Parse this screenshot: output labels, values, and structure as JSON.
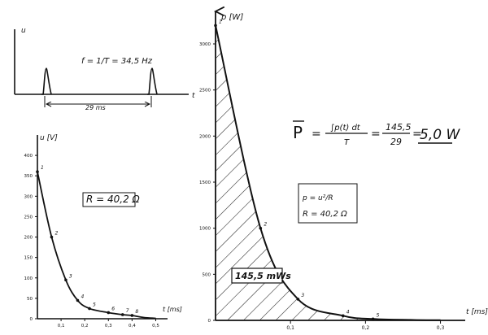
{
  "charts": {
    "pulse": {
      "ylabel": "u",
      "xlabel": "t",
      "formula": "f = 1/T = 34,5 Hz",
      "period_label": "29 ms"
    },
    "voltage": {
      "type": "line",
      "ylabel": "u [V]",
      "xlabel": "t [ms]",
      "annotation": "R = 40,2 Ω",
      "y_ticks": [
        "0",
        "50",
        "100",
        "150",
        "200",
        "250",
        "300",
        "350",
        "400"
      ],
      "x_ticks": [
        "0,1",
        "0,2",
        "0,3",
        "0,4",
        "0,5"
      ],
      "point_labels": [
        "1",
        "2",
        "3",
        "4",
        "5",
        "6",
        "7",
        "8"
      ]
    },
    "power": {
      "type": "area",
      "ylabel": "p [W]",
      "xlabel": "t [ms]",
      "area_label": "145,5 mWs",
      "formula_box_1": "p = u²/R",
      "formula_box_2": "R = 40,2 Ω",
      "y_ticks": [
        "0",
        "500",
        "1000",
        "1500",
        "2000",
        "2500",
        "3000"
      ],
      "x_ticks": [
        "0,1",
        "0,2",
        "0,3"
      ],
      "point_labels": [
        "1",
        "2",
        "3",
        "4",
        "5"
      ]
    },
    "mean_power": {
      "lhs": "P",
      "numerator": "∫p(t) dt",
      "denominator": "T",
      "ratio_num": "145,5",
      "ratio_den": "29",
      "result": "5,0 W"
    }
  },
  "chart_data": [
    {
      "type": "line",
      "title": "",
      "xlabel": "t [ms]",
      "ylabel": "u [V]",
      "xlim": [
        0,
        0.55
      ],
      "ylim": [
        0,
        450
      ],
      "points": [
        {
          "label": "1",
          "x": 0.0,
          "y": 360
        },
        {
          "label": "2",
          "x": 0.06,
          "y": 200
        },
        {
          "label": "3",
          "x": 0.12,
          "y": 95
        },
        {
          "label": "4",
          "x": 0.17,
          "y": 45
        },
        {
          "label": "5",
          "x": 0.22,
          "y": 25
        },
        {
          "label": "6",
          "x": 0.3,
          "y": 15
        },
        {
          "label": "7",
          "x": 0.36,
          "y": 10
        },
        {
          "label": "8",
          "x": 0.4,
          "y": 8
        }
      ]
    },
    {
      "type": "area",
      "title": "",
      "xlabel": "t [ms]",
      "ylabel": "p [W]",
      "xlim": [
        0,
        0.32
      ],
      "ylim": [
        0,
        3300
      ],
      "points": [
        {
          "label": "1",
          "x": 0.0,
          "y": 3200
        },
        {
          "label": "2",
          "x": 0.06,
          "y": 1000
        },
        {
          "label": "3",
          "x": 0.11,
          "y": 230
        },
        {
          "label": "4",
          "x": 0.17,
          "y": 50
        },
        {
          "label": "5",
          "x": 0.21,
          "y": 15
        }
      ],
      "area_value": "145,5 mWs"
    }
  ]
}
